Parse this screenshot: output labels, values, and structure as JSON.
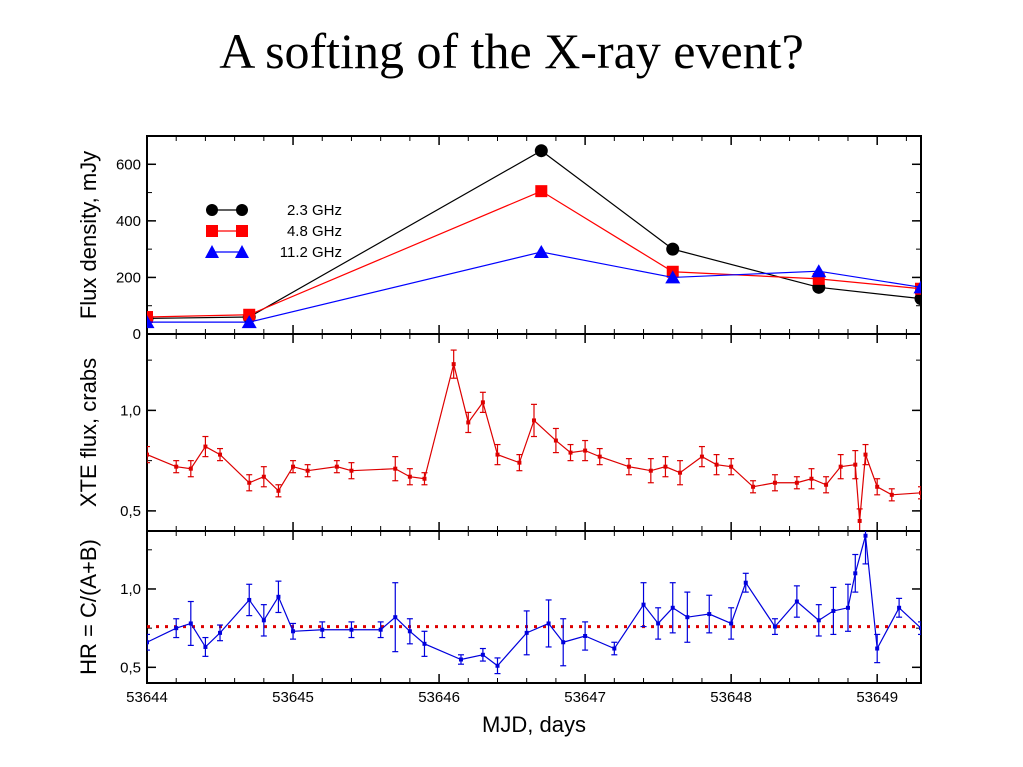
{
  "slide": {
    "title": "A softing of the X-ray event?"
  },
  "chart_data": [
    {
      "type": "line",
      "panel": "radio",
      "ylabel": "Flux density, mJy",
      "xlim": [
        53644,
        53649.3
      ],
      "ylim": [
        0,
        700
      ],
      "yticks": [
        0,
        200,
        400,
        600
      ],
      "ytick_labels": [
        "0",
        "200",
        "400",
        "600"
      ],
      "legend_position": "upper-left",
      "series": [
        {
          "name": "2.3 GHz",
          "color": "#000000",
          "marker": "circle",
          "x": [
            53644,
            53644.7,
            53646.7,
            53647.6,
            53648.6,
            53649.3
          ],
          "y": [
            55,
            60,
            648,
            300,
            165,
            125
          ]
        },
        {
          "name": "4.8 GHz",
          "color": "#ff0000",
          "marker": "square",
          "x": [
            53644,
            53644.7,
            53646.7,
            53647.6,
            53648.6,
            53649.3
          ],
          "y": [
            60,
            68,
            505,
            220,
            195,
            160
          ]
        },
        {
          "name": "11.2 GHz",
          "color": "#0000ff",
          "marker": "triangle",
          "x": [
            53644,
            53644.7,
            53646.7,
            53647.6,
            53648.6,
            53649.3
          ],
          "y": [
            42,
            42,
            290,
            200,
            222,
            165
          ]
        }
      ]
    },
    {
      "type": "line",
      "panel": "xte",
      "ylabel": "XTE flux, crabs",
      "xlim": [
        53644,
        53649.3
      ],
      "ylim": [
        0.4,
        1.38
      ],
      "yticks": [
        0.5,
        1.0
      ],
      "ytick_labels": [
        "0,5",
        "1,0"
      ],
      "series": [
        {
          "name": "",
          "color": "#dd0000",
          "marker": "errorbar",
          "x": [
            53644.0,
            53644.2,
            53644.3,
            53644.4,
            53644.5,
            53644.7,
            53644.8,
            53644.9,
            53645.0,
            53645.1,
            53645.3,
            53645.4,
            53645.7,
            53645.8,
            53645.9,
            53646.1,
            53646.2,
            53646.3,
            53646.4,
            53646.55,
            53646.65,
            53646.8,
            53646.9,
            53647.0,
            53647.1,
            53647.3,
            53647.45,
            53647.55,
            53647.65,
            53647.8,
            53647.9,
            53648.0,
            53648.15,
            53648.3,
            53648.45,
            53648.55,
            53648.65,
            53648.75,
            53648.85,
            53648.88,
            53648.92,
            53649.0,
            53649.1,
            53649.3
          ],
          "y": [
            0.78,
            0.72,
            0.71,
            0.82,
            0.78,
            0.64,
            0.67,
            0.6,
            0.72,
            0.7,
            0.72,
            0.7,
            0.71,
            0.67,
            0.66,
            1.23,
            0.94,
            1.04,
            0.78,
            0.74,
            0.95,
            0.85,
            0.79,
            0.8,
            0.77,
            0.72,
            0.7,
            0.72,
            0.69,
            0.77,
            0.73,
            0.72,
            0.62,
            0.64,
            0.64,
            0.66,
            0.63,
            0.72,
            0.73,
            0.45,
            0.78,
            0.62,
            0.58,
            0.59
          ],
          "err": [
            0.04,
            0.03,
            0.04,
            0.05,
            0.03,
            0.04,
            0.05,
            0.03,
            0.03,
            0.03,
            0.03,
            0.04,
            0.06,
            0.04,
            0.03,
            0.07,
            0.05,
            0.05,
            0.05,
            0.04,
            0.08,
            0.06,
            0.04,
            0.05,
            0.04,
            0.04,
            0.06,
            0.05,
            0.06,
            0.05,
            0.05,
            0.04,
            0.03,
            0.04,
            0.03,
            0.05,
            0.04,
            0.06,
            0.07,
            0.06,
            0.05,
            0.04,
            0.03,
            0.03
          ]
        }
      ]
    },
    {
      "type": "line",
      "panel": "hardness",
      "ylabel": "HR = C/(A+B)",
      "xlabel": "MJD, days",
      "xlim": [
        53644,
        53649.3
      ],
      "ylim": [
        0.4,
        1.37
      ],
      "yticks": [
        0.5,
        1.0
      ],
      "ytick_labels": [
        "0,5",
        "1,0"
      ],
      "xticks": [
        53644,
        53645,
        53646,
        53647,
        53648,
        53649
      ],
      "xtick_labels": [
        "53644",
        "53645",
        "53646",
        "53647",
        "53648",
        "53649"
      ],
      "reference_line": {
        "y": 0.76,
        "color": "#dd0000",
        "style": "dotted"
      },
      "series": [
        {
          "name": "",
          "color": "#0000dd",
          "marker": "errorbar",
          "x": [
            53644.0,
            53644.2,
            53644.3,
            53644.4,
            53644.5,
            53644.7,
            53644.8,
            53644.9,
            53645.0,
            53645.2,
            53645.4,
            53645.6,
            53645.7,
            53645.8,
            53645.9,
            53646.15,
            53646.3,
            53646.4,
            53646.6,
            53646.75,
            53646.85,
            53647.0,
            53647.2,
            53647.4,
            53647.5,
            53647.6,
            53647.7,
            53647.85,
            53648.0,
            53648.1,
            53648.3,
            53648.45,
            53648.6,
            53648.7,
            53648.8,
            53648.85,
            53648.92,
            53649.0,
            53649.15,
            53649.3
          ],
          "y": [
            0.66,
            0.75,
            0.78,
            0.63,
            0.72,
            0.93,
            0.8,
            0.95,
            0.73,
            0.74,
            0.74,
            0.74,
            0.82,
            0.73,
            0.65,
            0.55,
            0.58,
            0.51,
            0.72,
            0.78,
            0.66,
            0.7,
            0.62,
            0.9,
            0.78,
            0.88,
            0.82,
            0.84,
            0.78,
            1.04,
            0.76,
            0.92,
            0.8,
            0.86,
            0.88,
            1.1,
            1.34,
            0.62,
            0.88,
            0.75
          ],
          "err": [
            0.05,
            0.06,
            0.14,
            0.06,
            0.05,
            0.1,
            0.1,
            0.1,
            0.05,
            0.05,
            0.05,
            0.05,
            0.22,
            0.08,
            0.08,
            0.03,
            0.04,
            0.05,
            0.14,
            0.15,
            0.15,
            0.09,
            0.04,
            0.14,
            0.1,
            0.16,
            0.16,
            0.12,
            0.1,
            0.06,
            0.05,
            0.1,
            0.1,
            0.15,
            0.15,
            0.12,
            0.18,
            0.09,
            0.06,
            0.04
          ]
        }
      ]
    }
  ]
}
